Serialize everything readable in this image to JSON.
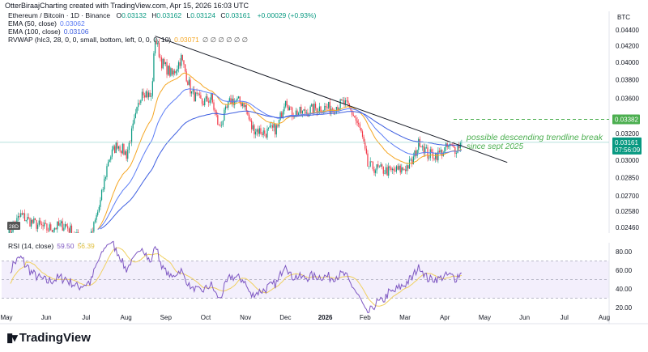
{
  "header": {
    "attribution": "OtterBiraajCharting created with TradingView.com, Apr 15, 2026 16:03 UTC"
  },
  "legend": {
    "symbol": "Ethereum / Bitcoin · 1D · Binance",
    "open_label": "O",
    "open": "0.03132",
    "high_label": "H",
    "high": "0.03162",
    "low_label": "L",
    "low": "0.03124",
    "close_label": "C",
    "close": "0.03161",
    "change": "+0.00029 (+0.93%)",
    "ema50_label": "EMA (50, close)",
    "ema50_value": "0.03062",
    "ema100_label": "EMA (100, close)",
    "ema100_value": "0.03106",
    "rvwap_label": "RVWAP (hlc3, 28, 0, 0, small, bottom, left, 0, 0, 0, 10)",
    "rvwap_value": "0.03071",
    "rvwap_extra": "∅ ∅ ∅ ∅ ∅ ∅",
    "rsi_label": "RSI (14, close)",
    "rsi_value": "59.50",
    "rsi_ma_value": "56.39"
  },
  "price_axis": {
    "currency": "BTC",
    "ticks": [
      "0.04400",
      "0.04200",
      "0.04000",
      "0.03800",
      "0.03600",
      "0.03200",
      "0.03000",
      "0.02850",
      "0.02700",
      "0.02580",
      "0.02460"
    ],
    "level_marker": "0.03382",
    "last_price": "0.03161",
    "countdown": "07:56:09"
  },
  "rsi_axis": {
    "ticks": [
      "80.00",
      "60.00",
      "40.00",
      "20.00"
    ]
  },
  "time_axis": {
    "ticks": [
      "May",
      "Jun",
      "Jul",
      "Aug",
      "Sep",
      "Oct",
      "Nov",
      "Dec",
      "2026",
      "Feb",
      "Mar",
      "Apr",
      "May",
      "Jun",
      "Jul",
      "Aug"
    ]
  },
  "annotation": {
    "line1": "possible descending trendline break",
    "line2": "since sept 2025"
  },
  "rvwap_badge": "28D",
  "brand": {
    "name": "TradingView"
  },
  "colors": {
    "up": "#089981",
    "down": "#f23645",
    "ema50": "#5b7cf5",
    "ema100": "#3d5ee0",
    "rvwap": "#f5a623",
    "rsi": "#7e57c2",
    "rsi_ma": "#f0d060",
    "annotation": "#4caf50",
    "trendline": "#131722"
  },
  "chart_data": {
    "type": "candlestick",
    "title": "Ethereum / Bitcoin · 1D · Binance",
    "y_scale": "log",
    "ylim": [
      0.0242,
      0.0445
    ],
    "xlim": [
      "2025-05-01",
      "2026-08-31"
    ],
    "grid": false,
    "closes": [
      [
        "2025-05-01",
        0.024
      ],
      [
        "2025-05-12",
        0.0255
      ],
      [
        "2025-05-20",
        0.025
      ],
      [
        "2025-06-01",
        0.0245
      ],
      [
        "2025-06-15",
        0.0248
      ],
      [
        "2025-06-25",
        0.0238
      ],
      [
        "2025-07-05",
        0.024
      ],
      [
        "2025-07-12",
        0.0265
      ],
      [
        "2025-07-18",
        0.03
      ],
      [
        "2025-07-25",
        0.0315
      ],
      [
        "2025-08-01",
        0.0305
      ],
      [
        "2025-08-08",
        0.034
      ],
      [
        "2025-08-13",
        0.037
      ],
      [
        "2025-08-20",
        0.036
      ],
      [
        "2025-08-23",
        0.043
      ],
      [
        "2025-08-28",
        0.04
      ],
      [
        "2025-09-05",
        0.0385
      ],
      [
        "2025-09-12",
        0.0405
      ],
      [
        "2025-09-20",
        0.0365
      ],
      [
        "2025-09-28",
        0.0355
      ],
      [
        "2025-10-05",
        0.036
      ],
      [
        "2025-10-11",
        0.033
      ],
      [
        "2025-10-20",
        0.0358
      ],
      [
        "2025-10-30",
        0.0355
      ],
      [
        "2025-11-05",
        0.033
      ],
      [
        "2025-11-15",
        0.0325
      ],
      [
        "2025-11-25",
        0.033
      ],
      [
        "2025-12-01",
        0.0362
      ],
      [
        "2025-12-05",
        0.0345
      ],
      [
        "2025-12-15",
        0.0345
      ],
      [
        "2025-12-25",
        0.035
      ],
      [
        "2026-01-05",
        0.035
      ],
      [
        "2026-01-15",
        0.0355
      ],
      [
        "2026-01-22",
        0.0343
      ],
      [
        "2026-01-28",
        0.0325
      ],
      [
        "2026-02-02",
        0.0295
      ],
      [
        "2026-02-10",
        0.0292
      ],
      [
        "2026-02-20",
        0.029
      ],
      [
        "2026-03-01",
        0.0292
      ],
      [
        "2026-03-08",
        0.0298
      ],
      [
        "2026-03-14",
        0.0318
      ],
      [
        "2026-03-20",
        0.0305
      ],
      [
        "2026-03-28",
        0.0305
      ],
      [
        "2026-04-05",
        0.0312
      ],
      [
        "2026-04-10",
        0.031
      ],
      [
        "2026-04-15",
        0.03161
      ]
    ],
    "trendline": [
      [
        "2025-08-23",
        0.0432
      ],
      [
        "2026-05-20",
        0.0298
      ]
    ],
    "horizontal_level": 0.03382,
    "rsi": {
      "period": 14,
      "ylim": [
        20,
        85
      ],
      "bands": [
        70,
        50,
        30
      ],
      "last": 59.5,
      "ma_last": 56.39
    }
  }
}
